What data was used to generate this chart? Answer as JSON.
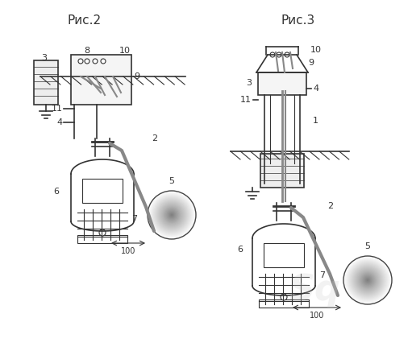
{
  "title_left": "Рис.2",
  "title_right": "Рис.3",
  "bg_color": "#ffffff",
  "line_color": "#333333",
  "gray_color": "#888888",
  "light_gray": "#aaaaaa",
  "hatch_color": "#555555",
  "fig_width": 5.11,
  "fig_height": 4.36,
  "dpi": 100
}
